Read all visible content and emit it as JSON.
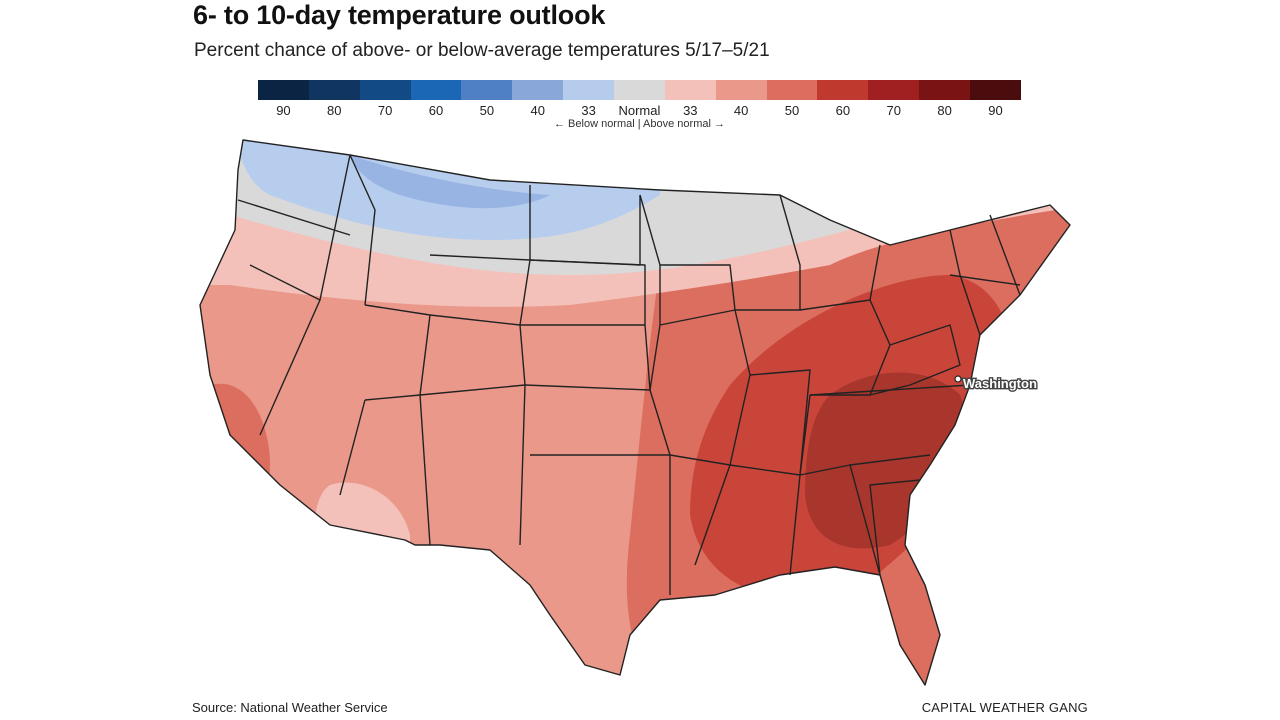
{
  "header": {
    "title": "6- to 10-day temperature outlook",
    "subtitle": "Percent chance of above- or below-average temperatures 5/17–5/21"
  },
  "legend": {
    "labels": [
      "90",
      "80",
      "70",
      "60",
      "50",
      "40",
      "33",
      "Normal",
      "33",
      "40",
      "50",
      "60",
      "70",
      "80",
      "90"
    ],
    "colors": [
      "#0c2444",
      "#0f3560",
      "#124a86",
      "#1b66b5",
      "#4f7fc4",
      "#8aa7da",
      "#b6ccec",
      "#d9d9d9",
      "#f3c1b9",
      "#e9988a",
      "#dd6d5e",
      "#c0392f",
      "#a01f20",
      "#7a1414",
      "#4a0c0c"
    ],
    "note": "← Below normal | Above normal →"
  },
  "map": {
    "city_label": "Washington",
    "region_colors": {
      "blue_light": "#b7cdee",
      "blue_mid": "#98b4e3",
      "normal": "#d9d9d9",
      "above_33": "#f3c1b9",
      "above_40": "#e9988a",
      "above_50": "#dc6e5f",
      "above_60": "#c9453a",
      "above_70": "#a8362c"
    }
  },
  "footer": {
    "source": "Source: National Weather Service",
    "credit": "CAPITAL WEATHER GANG"
  }
}
